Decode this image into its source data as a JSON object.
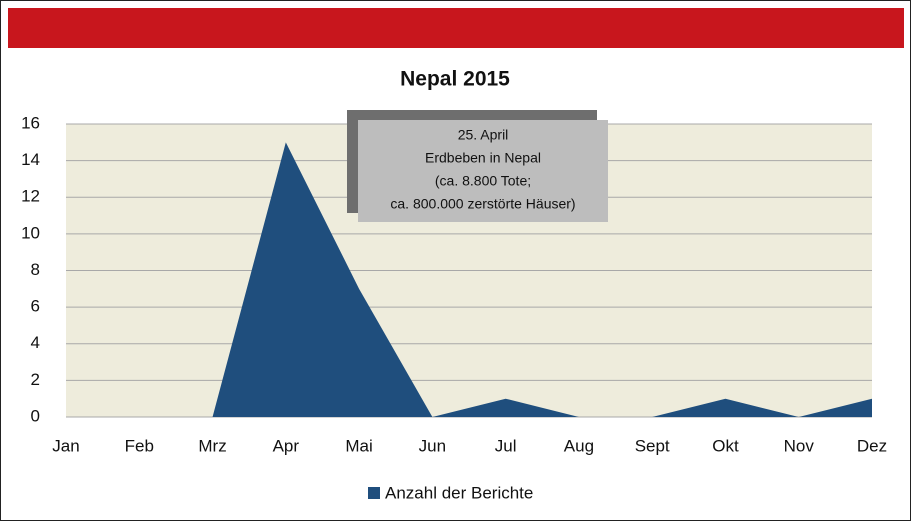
{
  "chart_data": {
    "type": "area",
    "title": "Nepal 2015",
    "categories": [
      "Jan",
      "Feb",
      "Mrz",
      "Apr",
      "Mai",
      "Jun",
      "Jul",
      "Aug",
      "Sept",
      "Okt",
      "Nov",
      "Dez"
    ],
    "series": [
      {
        "name": "Anzahl der Berichte",
        "color": "#1f4e7d",
        "values": [
          0,
          0,
          0,
          15,
          7,
          0,
          1,
          0,
          0,
          1,
          0,
          1
        ]
      }
    ],
    "ylim": [
      0,
      16
    ],
    "yticks": [
      0,
      2,
      4,
      6,
      8,
      10,
      12,
      14,
      16
    ],
    "grid": true,
    "legend": "bottom",
    "annotation": [
      "25. April",
      "Erdbeben in Nepal",
      "(ca. 8.800 Tote;",
      "ca. 800.000 zerstörte Häuser)"
    ]
  }
}
